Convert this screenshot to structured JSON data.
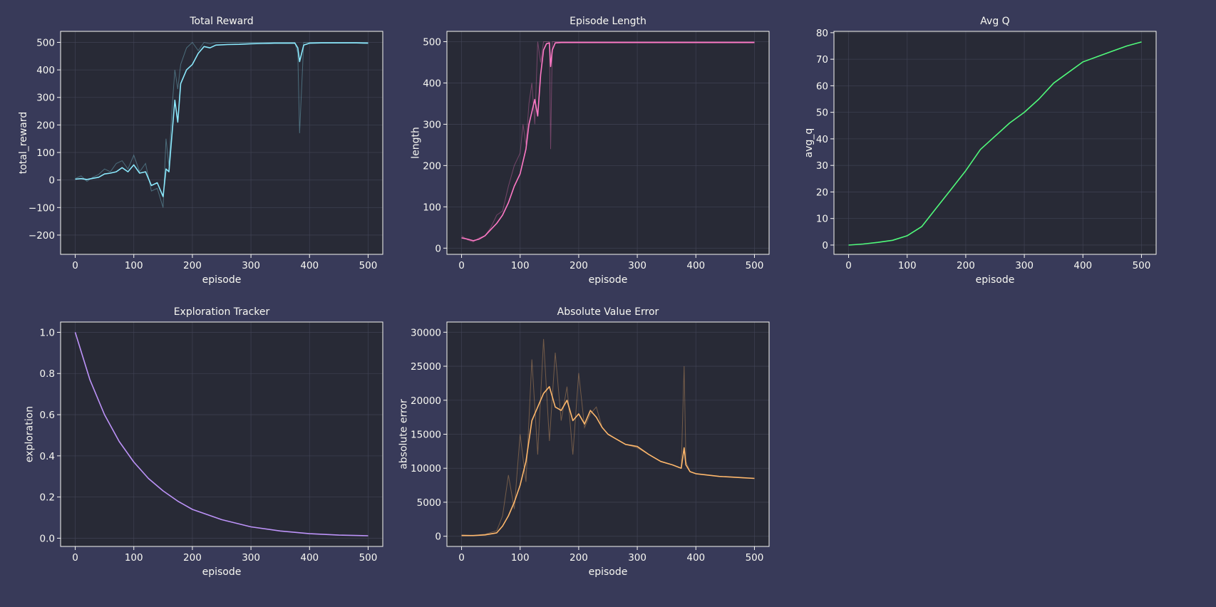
{
  "theme": {
    "background": "#383a59",
    "panel": "#282a36",
    "border": "#f8f8f2",
    "grid": "#44475a",
    "text": "#f8f8f2"
  },
  "chart_data": [
    {
      "id": "reward",
      "type": "line",
      "title": "Total Reward",
      "xlabel": "episode",
      "ylabel": "total_reward",
      "xlim": [
        -25,
        525
      ],
      "ylim": [
        -270,
        540
      ],
      "xticks": [
        0,
        100,
        200,
        300,
        400,
        500
      ],
      "yticks": [
        -200,
        -100,
        0,
        100,
        200,
        300,
        400,
        500
      ],
      "grid": true,
      "color": "#8be9fd",
      "x": [
        0,
        10,
        20,
        30,
        40,
        50,
        60,
        70,
        80,
        90,
        100,
        110,
        120,
        130,
        140,
        150,
        155,
        160,
        165,
        170,
        175,
        180,
        190,
        200,
        210,
        220,
        230,
        240,
        260,
        280,
        300,
        320,
        340,
        360,
        375,
        380,
        383,
        390,
        400,
        420,
        440,
        460,
        480,
        500
      ],
      "raw": [
        5,
        15,
        -5,
        10,
        20,
        40,
        30,
        60,
        70,
        40,
        90,
        30,
        60,
        -40,
        -30,
        -100,
        150,
        50,
        250,
        400,
        330,
        420,
        480,
        500,
        470,
        500,
        495,
        500,
        500,
        500,
        500,
        500,
        500,
        500,
        500,
        460,
        170,
        500,
        500,
        500,
        500,
        500,
        500,
        500
      ],
      "smooth": [
        3,
        5,
        2,
        6,
        10,
        22,
        25,
        30,
        45,
        30,
        55,
        25,
        30,
        -20,
        -10,
        -60,
        40,
        30,
        160,
        290,
        210,
        350,
        400,
        420,
        460,
        485,
        480,
        490,
        492,
        493,
        495,
        496,
        497,
        497,
        497,
        480,
        430,
        490,
        497,
        498,
        498,
        498,
        498,
        497
      ]
    },
    {
      "id": "length",
      "type": "line",
      "title": "Episode Length",
      "xlabel": "episode",
      "ylabel": "length",
      "xlim": [
        -25,
        525
      ],
      "ylim": [
        -15,
        525
      ],
      "xticks": [
        0,
        100,
        200,
        300,
        400,
        500
      ],
      "yticks": [
        0,
        100,
        200,
        300,
        400,
        500
      ],
      "grid": true,
      "color": "#ff79c6",
      "x": [
        0,
        10,
        20,
        30,
        40,
        50,
        60,
        70,
        80,
        90,
        100,
        105,
        110,
        115,
        120,
        125,
        130,
        135,
        140,
        145,
        150,
        152,
        155,
        160,
        170,
        180,
        200,
        250,
        300,
        350,
        400,
        450,
        500
      ],
      "raw": [
        30,
        20,
        15,
        25,
        30,
        50,
        80,
        90,
        150,
        200,
        230,
        300,
        250,
        350,
        400,
        300,
        500,
        450,
        500,
        500,
        500,
        240,
        500,
        500,
        500,
        500,
        500,
        500,
        500,
        500,
        500,
        500,
        500
      ],
      "smooth": [
        25,
        22,
        18,
        22,
        30,
        45,
        60,
        80,
        110,
        150,
        180,
        210,
        240,
        300,
        330,
        360,
        320,
        420,
        480,
        495,
        497,
        440,
        480,
        497,
        498,
        498,
        498,
        498,
        498,
        498,
        498,
        498,
        498
      ]
    },
    {
      "id": "avgq",
      "type": "line",
      "title": "Avg Q",
      "xlabel": "episode",
      "ylabel": "avg_q",
      "xlim": [
        -25,
        525
      ],
      "ylim": [
        -3.5,
        80.5
      ],
      "xticks": [
        0,
        100,
        200,
        300,
        400,
        500
      ],
      "yticks": [
        0,
        10,
        20,
        30,
        40,
        50,
        60,
        70,
        80
      ],
      "grid": true,
      "color": "#50fa7b",
      "x": [
        0,
        25,
        50,
        75,
        100,
        125,
        150,
        175,
        200,
        225,
        250,
        275,
        300,
        325,
        350,
        375,
        400,
        425,
        450,
        475,
        500
      ],
      "smooth": [
        0,
        0.4,
        1,
        1.8,
        3.5,
        7,
        14,
        21,
        28,
        36,
        41,
        46,
        50,
        55,
        61,
        65,
        69,
        71,
        73,
        75,
        76.5
      ]
    },
    {
      "id": "exploration",
      "type": "line",
      "title": "Exploration Tracker",
      "xlabel": "episode",
      "ylabel": "exploration",
      "xlim": [
        -25,
        525
      ],
      "ylim": [
        -0.04,
        1.05
      ],
      "xticks": [
        0,
        100,
        200,
        300,
        400,
        500
      ],
      "yticks": [
        0.0,
        0.2,
        0.4,
        0.6,
        0.8,
        1.0
      ],
      "ytick_decimals": 1,
      "grid": true,
      "color": "#bd93f9",
      "x": [
        0,
        25,
        50,
        75,
        100,
        125,
        150,
        175,
        200,
        250,
        300,
        350,
        400,
        450,
        500
      ],
      "smooth": [
        1.0,
        0.77,
        0.6,
        0.47,
        0.37,
        0.29,
        0.23,
        0.18,
        0.14,
        0.09,
        0.055,
        0.035,
        0.022,
        0.015,
        0.012
      ]
    },
    {
      "id": "abserr",
      "type": "line",
      "title": "Absolute Value Error",
      "xlabel": "episode",
      "ylabel": "absolute error",
      "xlim": [
        -25,
        525
      ],
      "ylim": [
        -1500,
        31500
      ],
      "xticks": [
        0,
        100,
        200,
        300,
        400,
        500
      ],
      "yticks": [
        0,
        5000,
        10000,
        15000,
        20000,
        25000,
        30000
      ],
      "grid": true,
      "color": "#ffb86c",
      "x": [
        0,
        20,
        40,
        60,
        70,
        80,
        90,
        100,
        110,
        120,
        130,
        140,
        150,
        160,
        170,
        180,
        190,
        200,
        210,
        220,
        230,
        240,
        250,
        260,
        280,
        300,
        320,
        340,
        360,
        375,
        380,
        383,
        390,
        400,
        420,
        440,
        460,
        480,
        500
      ],
      "raw": [
        200,
        100,
        300,
        800,
        3000,
        9000,
        4000,
        15000,
        8000,
        26000,
        12000,
        29000,
        14000,
        27000,
        17000,
        22000,
        12000,
        24000,
        16000,
        18000,
        19000,
        16000,
        15000,
        14500,
        13500,
        13000,
        12000,
        11000,
        10500,
        10000,
        25000,
        11000,
        9500,
        9200,
        9000,
        8800,
        8700,
        8600,
        8500
      ],
      "smooth": [
        100,
        100,
        200,
        500,
        1500,
        3000,
        5000,
        7500,
        11000,
        17000,
        19000,
        21000,
        22000,
        19000,
        18500,
        20000,
        17000,
        18000,
        16500,
        18500,
        17500,
        16000,
        15000,
        14500,
        13500,
        13200,
        12000,
        11000,
        10500,
        10000,
        13000,
        10500,
        9500,
        9200,
        9000,
        8800,
        8700,
        8600,
        8500
      ]
    }
  ]
}
